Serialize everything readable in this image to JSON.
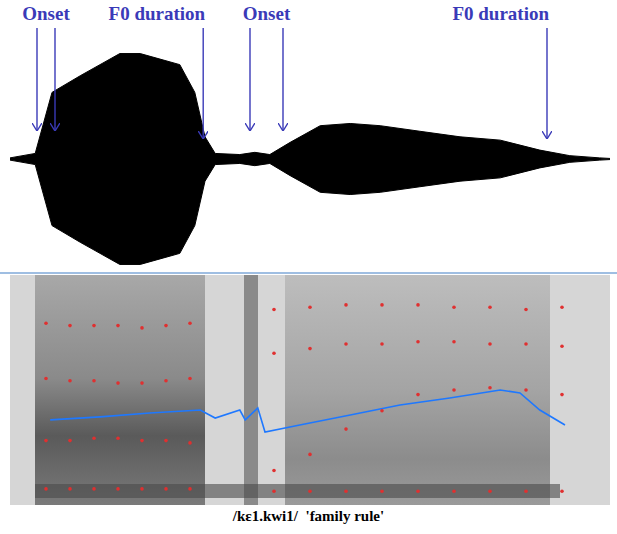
{
  "chart_data": [
    {
      "type": "area",
      "xlim": [
        0,
        100
      ],
      "ylim": [
        -1,
        1
      ],
      "xticks": [],
      "yticks": [],
      "tick_labels": false,
      "color": "#000000",
      "x": [
        0,
        4.2,
        7,
        11.7,
        15,
        18.3,
        21.7,
        25,
        28.3,
        30.8,
        32.5,
        34.2,
        38.3,
        40.8,
        43.3,
        46.7,
        51.7,
        56.7,
        61.7,
        68.3,
        75,
        81.7,
        88.3,
        93.3,
        98.3,
        100
      ],
      "values": [
        0.01,
        0.05,
        0.6,
        0.75,
        0.85,
        0.95,
        0.95,
        0.9,
        0.85,
        0.6,
        0.2,
        0.05,
        0.04,
        0.06,
        0.04,
        0.15,
        0.3,
        0.32,
        0.3,
        0.25,
        0.2,
        0.17,
        0.08,
        0.03,
        0.01,
        0.005
      ],
      "annotations": [
        {
          "text": "Onset",
          "x": [
            4.5,
            7.5
          ]
        },
        {
          "text": "F0 duration",
          "x": [
            32.2
          ]
        },
        {
          "text": "Onset",
          "x": [
            40,
            45.5
          ]
        },
        {
          "text": "F0 duration",
          "x": [
            89.5
          ]
        }
      ]
    },
    {
      "type": "line",
      "xlim": [
        0,
        100
      ],
      "ylim": [
        0,
        100
      ],
      "xticks": [],
      "yticks": [],
      "tick_labels": false,
      "color": "#1e78ff",
      "x": [
        6.7,
        15,
        23.3,
        31.7,
        34.2,
        38.3,
        39.2,
        41.3,
        42.5,
        48.3,
        56.7,
        65,
        73.3,
        81.7,
        85,
        88.3,
        92.5
      ],
      "values": [
        37,
        38.3,
        40,
        41.3,
        37.8,
        41.3,
        37,
        42.2,
        31.7,
        34.8,
        39.1,
        43.5,
        46.5,
        50,
        48.7,
        41.3,
        34.8
      ],
      "formants": {
        "type": "scatter",
        "marker": "dot",
        "x": [
          6,
          10,
          14,
          18,
          22,
          26,
          30,
          44,
          50,
          56,
          62,
          68,
          74,
          80,
          86,
          92
        ],
        "series": [
          {
            "color": "#e03030",
            "values": [
              7,
              7,
              7,
              7,
              7,
              7,
              7,
              6,
              6,
              6,
              6,
              6,
              6,
              6,
              6,
              6
            ]
          },
          {
            "color": "#e03030",
            "values": [
              28,
              28,
              29,
              29,
              28,
              28,
              27,
              15,
              22,
              33,
              41,
              48,
              50,
              51,
              50,
              48
            ]
          },
          {
            "color": "#e03030",
            "values": [
              55,
              54,
              54,
              53,
              53,
              54,
              55,
              66,
              68,
              70,
              70,
              71,
              71,
              70,
              70,
              69
            ]
          },
          {
            "color": "#e03030",
            "values": [
              79,
              78,
              78,
              78,
              77,
              78,
              79,
              85,
              86,
              87,
              87,
              87,
              86,
              86,
              85,
              86
            ]
          }
        ]
      },
      "xlabel": "/kɛ1.kwi1/  'family rule'"
    }
  ]
}
